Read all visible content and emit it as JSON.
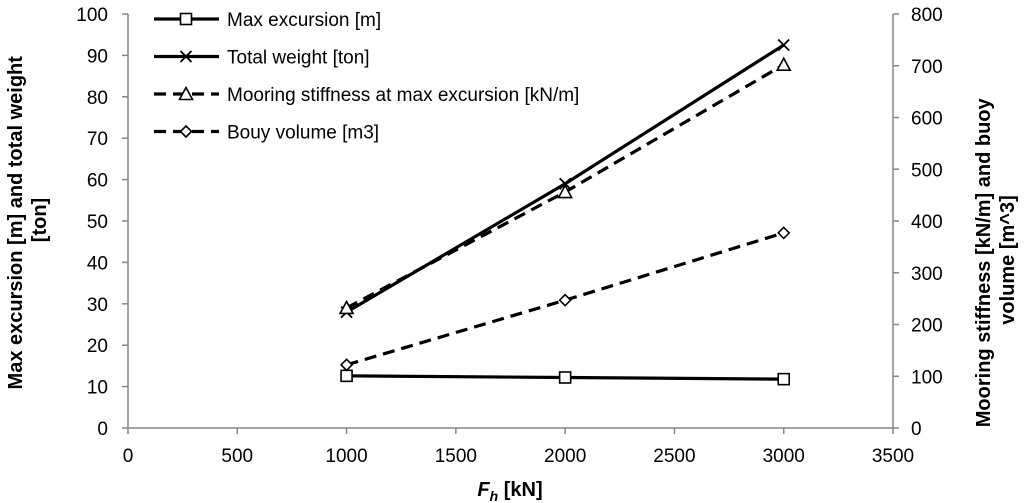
{
  "chart_data": {
    "type": "line",
    "title": "",
    "xlabel": "F_h [kN]",
    "xlabel_main": "F",
    "xlabel_sub": "h",
    "xlabel_unit": " [kN]",
    "ylabel_left": [
      "Max  excursion [m]  and total weight",
      "[ton]"
    ],
    "ylabel_right": [
      "Mooring stiffness [kN/m] and buoy",
      "volume [m^3]"
    ],
    "xlim": [
      0,
      3500
    ],
    "ylim_left": [
      0,
      100
    ],
    "ylim_right": [
      0,
      800
    ],
    "x_ticks": [
      "0",
      "500",
      "1000",
      "1500",
      "2000",
      "2500",
      "3000",
      "3500"
    ],
    "y_left_ticks": [
      "0",
      "10",
      "20",
      "30",
      "40",
      "50",
      "60",
      "70",
      "80",
      "90",
      "100"
    ],
    "y_right_ticks": [
      "0",
      "100",
      "200",
      "300",
      "400",
      "500",
      "600",
      "700",
      "800"
    ],
    "grid": false,
    "legend_position": "top-left",
    "series": [
      {
        "name": "Max excursion [m]",
        "axis": "left",
        "marker": "square",
        "dash": "solid",
        "x": [
          1000,
          2000,
          3000
        ],
        "values": [
          12.6,
          12.2,
          11.8
        ]
      },
      {
        "name": "Total weight [ton]",
        "axis": "left",
        "marker": "x",
        "dash": "solid",
        "x": [
          1000,
          2000,
          3000
        ],
        "values": [
          28,
          59,
          92.5
        ]
      },
      {
        "name": "Mooring stiffness  at max excursion [kN/m]",
        "axis": "right",
        "marker": "triangle",
        "dash": "dashed",
        "x": [
          1000,
          2000,
          3000
        ],
        "values": [
          232,
          456,
          702
        ]
      },
      {
        "name": "Bouy volume [m3]",
        "axis": "right",
        "marker": "diamond",
        "dash": "dashed",
        "x": [
          1000,
          2000,
          3000
        ],
        "values": [
          122,
          247,
          377
        ]
      }
    ]
  }
}
